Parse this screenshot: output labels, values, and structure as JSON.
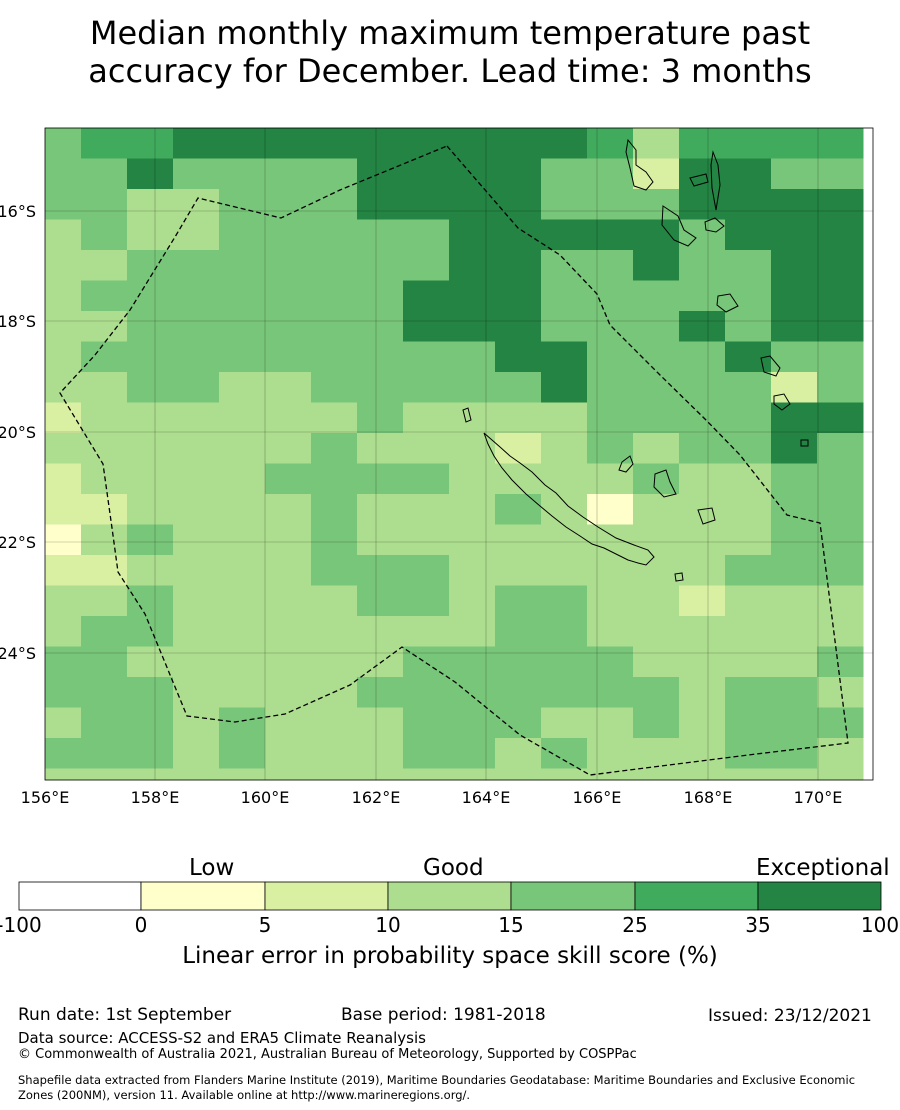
{
  "title_line1": "Median monthly maximum temperature past",
  "title_line2": "accuracy for December. Lead time: 3 months",
  "map": {
    "lon_ticks": [
      "156°E",
      "158°E",
      "160°E",
      "162°E",
      "164°E",
      "166°E",
      "168°E",
      "170°E"
    ],
    "lat_ticks": [
      "16°S",
      "18°S",
      "20°S",
      "22°S",
      "24°S"
    ],
    "grid": [
      [
        4,
        5,
        5,
        6,
        6,
        6,
        6,
        6,
        6,
        6,
        6,
        6,
        5,
        3,
        5,
        5,
        5,
        5
      ],
      [
        4,
        4,
        6,
        4,
        4,
        4,
        4,
        6,
        6,
        6,
        6,
        4,
        4,
        2,
        6,
        6,
        4,
        4
      ],
      [
        4,
        4,
        3,
        3,
        4,
        4,
        4,
        6,
        6,
        6,
        6,
        4,
        4,
        4,
        6,
        6,
        6,
        6
      ],
      [
        3,
        4,
        3,
        3,
        4,
        4,
        4,
        4,
        4,
        6,
        6,
        6,
        6,
        6,
        4,
        6,
        6,
        6
      ],
      [
        3,
        3,
        4,
        4,
        4,
        4,
        4,
        4,
        4,
        6,
        6,
        4,
        4,
        6,
        4,
        4,
        6,
        6
      ],
      [
        3,
        4,
        4,
        4,
        4,
        4,
        4,
        4,
        6,
        6,
        6,
        4,
        4,
        4,
        4,
        4,
        6,
        6
      ],
      [
        3,
        3,
        4,
        4,
        4,
        4,
        4,
        4,
        6,
        6,
        6,
        4,
        4,
        4,
        6,
        4,
        6,
        6
      ],
      [
        3,
        4,
        4,
        4,
        4,
        4,
        4,
        4,
        4,
        4,
        6,
        6,
        4,
        4,
        4,
        6,
        4,
        4
      ],
      [
        3,
        3,
        4,
        4,
        3,
        3,
        4,
        4,
        4,
        4,
        4,
        6,
        4,
        4,
        4,
        4,
        2,
        4
      ],
      [
        2,
        3,
        3,
        3,
        3,
        3,
        3,
        4,
        3,
        3,
        3,
        3,
        4,
        4,
        4,
        4,
        6,
        6
      ],
      [
        3,
        3,
        3,
        3,
        3,
        3,
        4,
        3,
        3,
        3,
        2,
        3,
        4,
        3,
        4,
        4,
        6,
        4
      ],
      [
        2,
        3,
        3,
        3,
        3,
        4,
        4,
        4,
        4,
        3,
        3,
        3,
        3,
        4,
        3,
        3,
        4,
        4
      ],
      [
        2,
        2,
        3,
        3,
        3,
        3,
        4,
        3,
        3,
        3,
        4,
        3,
        1,
        3,
        3,
        3,
        4,
        4
      ],
      [
        1,
        3,
        4,
        3,
        3,
        3,
        4,
        3,
        3,
        3,
        3,
        3,
        3,
        3,
        3,
        3,
        4,
        4
      ],
      [
        2,
        2,
        3,
        3,
        3,
        3,
        4,
        4,
        4,
        3,
        3,
        3,
        3,
        3,
        3,
        4,
        4,
        4
      ],
      [
        3,
        3,
        4,
        3,
        3,
        3,
        3,
        4,
        4,
        3,
        4,
        4,
        3,
        3,
        2,
        3,
        3,
        3
      ],
      [
        3,
        4,
        4,
        3,
        3,
        3,
        3,
        3,
        3,
        3,
        4,
        4,
        3,
        3,
        3,
        3,
        3,
        3
      ],
      [
        4,
        4,
        3,
        3,
        3,
        3,
        3,
        3,
        4,
        4,
        4,
        4,
        4,
        3,
        3,
        3,
        3,
        4
      ],
      [
        4,
        4,
        4,
        3,
        3,
        3,
        3,
        4,
        4,
        4,
        4,
        4,
        4,
        4,
        3,
        4,
        4,
        3
      ],
      [
        3,
        4,
        4,
        3,
        4,
        3,
        3,
        3,
        4,
        4,
        4,
        3,
        3,
        4,
        3,
        4,
        4,
        4
      ],
      [
        4,
        4,
        4,
        3,
        4,
        3,
        3,
        3,
        4,
        4,
        3,
        4,
        3,
        3,
        3,
        4,
        4,
        3
      ],
      [
        3,
        3,
        3,
        3,
        3,
        3,
        3,
        3,
        3,
        3,
        3,
        3,
        3,
        3,
        3,
        3,
        3,
        3
      ]
    ]
  },
  "legend": {
    "categories": [
      "Low",
      "Good",
      "Exceptional"
    ],
    "ticks": [
      "-100",
      "0",
      "5",
      "10",
      "15",
      "25",
      "35",
      "100"
    ],
    "colors": [
      "#ffffff",
      "#ffffcc",
      "#d9f0a3",
      "#addd8e",
      "#78c679",
      "#41ab5d",
      "#238443"
    ],
    "label": "Linear error in probability space skill score (%)"
  },
  "footer": {
    "run_date": "Run date: 1st September",
    "base_period": "Base period: 1981-2018",
    "issued": "Issued: 23/12/2021",
    "data_source": "Data source: ACCESS-S2 and ERA5 Climate Reanalysis",
    "copyright": "© Commonwealth of Australia 2021, Australian Bureau of Meteorology, Supported by COSPPac",
    "shapefile_line1": "Shapefile data extracted from Flanders Marine Institute (2019), Maritime Boundaries Geodatabase: Maritime Boundaries and Exclusive Economic",
    "shapefile_line2": "Zones (200NM), version 11. Available online at http://www.marineregions.org/."
  }
}
